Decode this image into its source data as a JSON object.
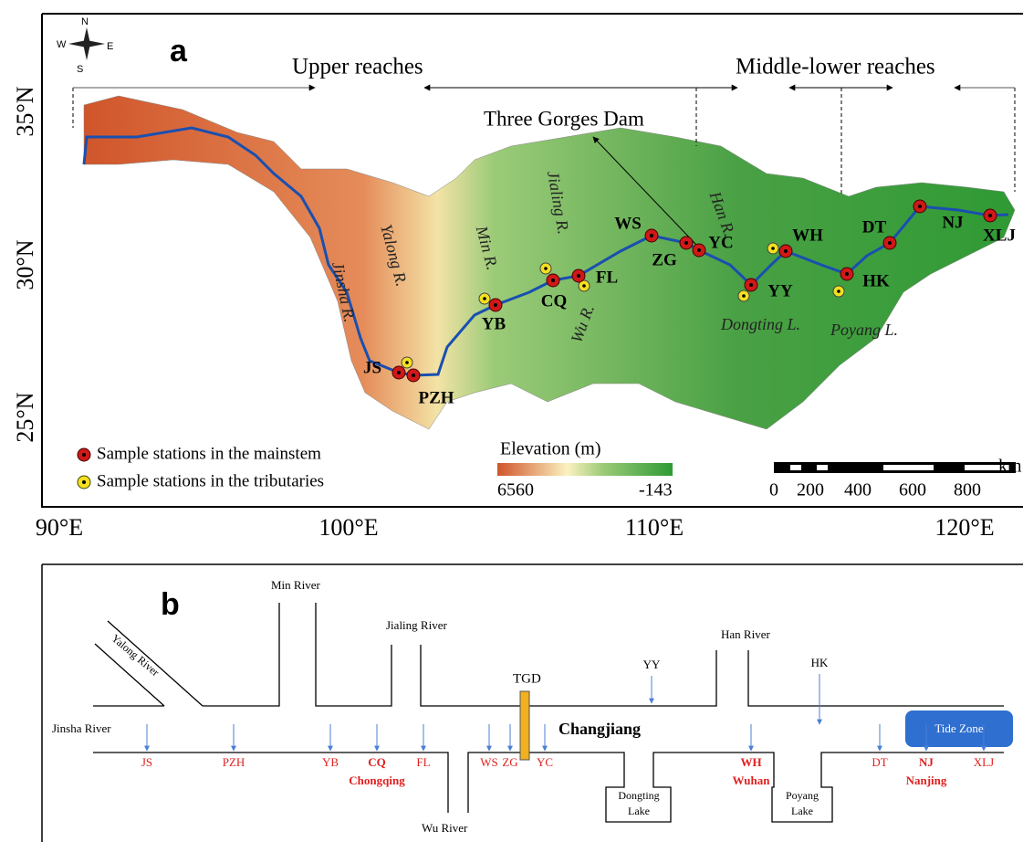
{
  "panel_a": {
    "label": "a",
    "compass": [
      "N",
      "S",
      "W",
      "E"
    ],
    "reaches": [
      "Upper reaches",
      "Middle-lower reaches"
    ],
    "dam": "Three Gorges Dam",
    "lat_ticks": [
      "35°N",
      "30°N",
      "25°N"
    ],
    "lon_ticks": [
      "90°E",
      "100°E",
      "110°E",
      "120°E"
    ],
    "rivers": [
      "Jinsha R.",
      "Yalong R.",
      "Min R.",
      "Jialing R.",
      "Wu R.",
      "Han R."
    ],
    "lakes": [
      "Dongting L.",
      "Poyang L."
    ],
    "stations": [
      "JS",
      "PZH",
      "YB",
      "CQ",
      "FL",
      "WS",
      "ZG",
      "YC",
      "YY",
      "WH",
      "HK",
      "DT",
      "NJ",
      "XLJ"
    ],
    "legend": [
      "Sample stations in the mainstem",
      "Sample stations in the tributaries"
    ],
    "elevation": {
      "title": "Elevation (m)",
      "max": 6560,
      "min": -143
    },
    "scale": {
      "ticks": [
        0,
        200,
        400,
        600,
        800
      ],
      "unit": "km"
    }
  },
  "panel_b": {
    "label": "b",
    "tributaries": [
      "Yalong River",
      "Min River",
      "Jialing River",
      "Wu River",
      "Han River"
    ],
    "mainstem": "Jinsha River",
    "dam": "TGD",
    "river": "Changjiang",
    "tide": "Tide Zone",
    "lake_stations": [
      "YY",
      "HK"
    ],
    "lakes": [
      [
        "Dongting",
        "Lake"
      ],
      [
        "Poyang",
        "Lake"
      ]
    ],
    "stations": [
      {
        "code": "JS"
      },
      {
        "code": "PZH"
      },
      {
        "code": "YB"
      },
      {
        "code": "CQ",
        "city": "Chongqing"
      },
      {
        "code": "FL"
      },
      {
        "code": "WS"
      },
      {
        "code": "ZG"
      },
      {
        "code": "YC"
      },
      {
        "code": "WH",
        "city": "Wuhan"
      },
      {
        "code": "DT"
      },
      {
        "code": "NJ",
        "city": "Nanjing"
      },
      {
        "code": "XLJ"
      }
    ]
  }
}
